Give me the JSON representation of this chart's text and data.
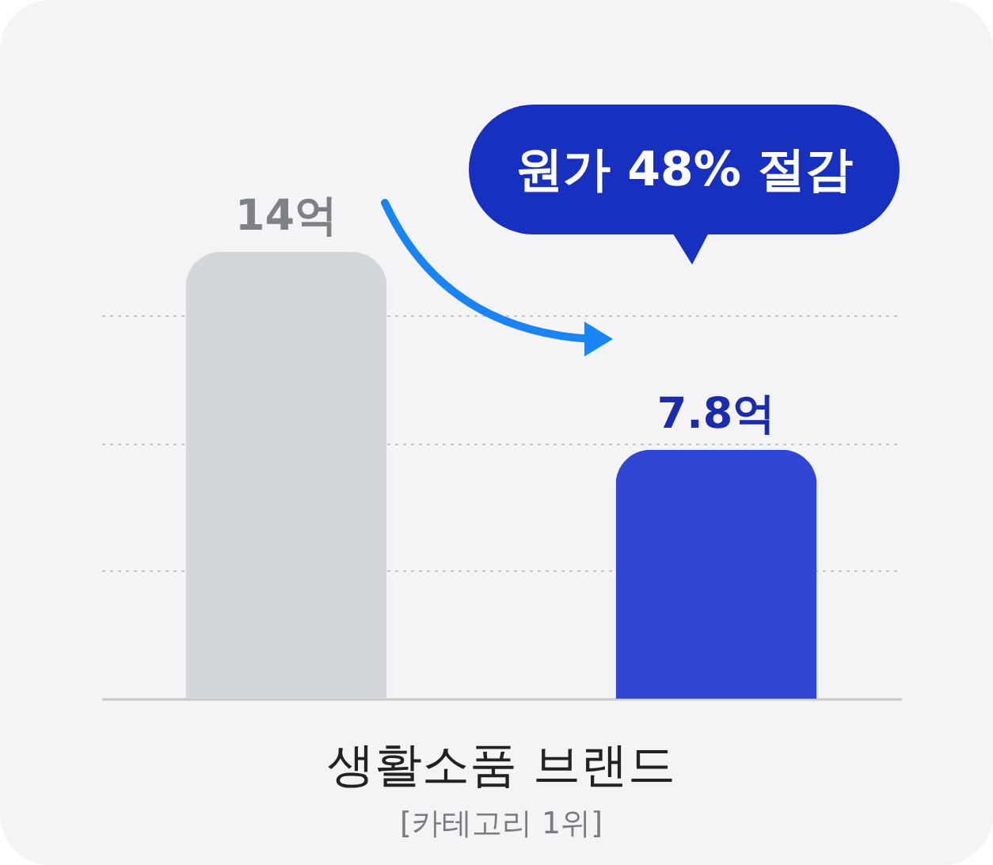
{
  "chart_data": {
    "type": "bar",
    "title": "생활소품 브랜드",
    "subtitle": "[카테고리 1위]",
    "categories": [
      null,
      null
    ],
    "values": [
      14,
      7.8
    ],
    "colors": [
      "#d3d6db",
      "#2f47d4"
    ],
    "value_labels": [
      "14억",
      "7.8억"
    ],
    "annotations": [
      "원가 48% 절감"
    ],
    "yticks": [
      {
        "value": 4,
        "label": null
      },
      {
        "value": 8,
        "label": null
      },
      {
        "value": 12,
        "label": null
      }
    ],
    "grid": "y"
  }
}
